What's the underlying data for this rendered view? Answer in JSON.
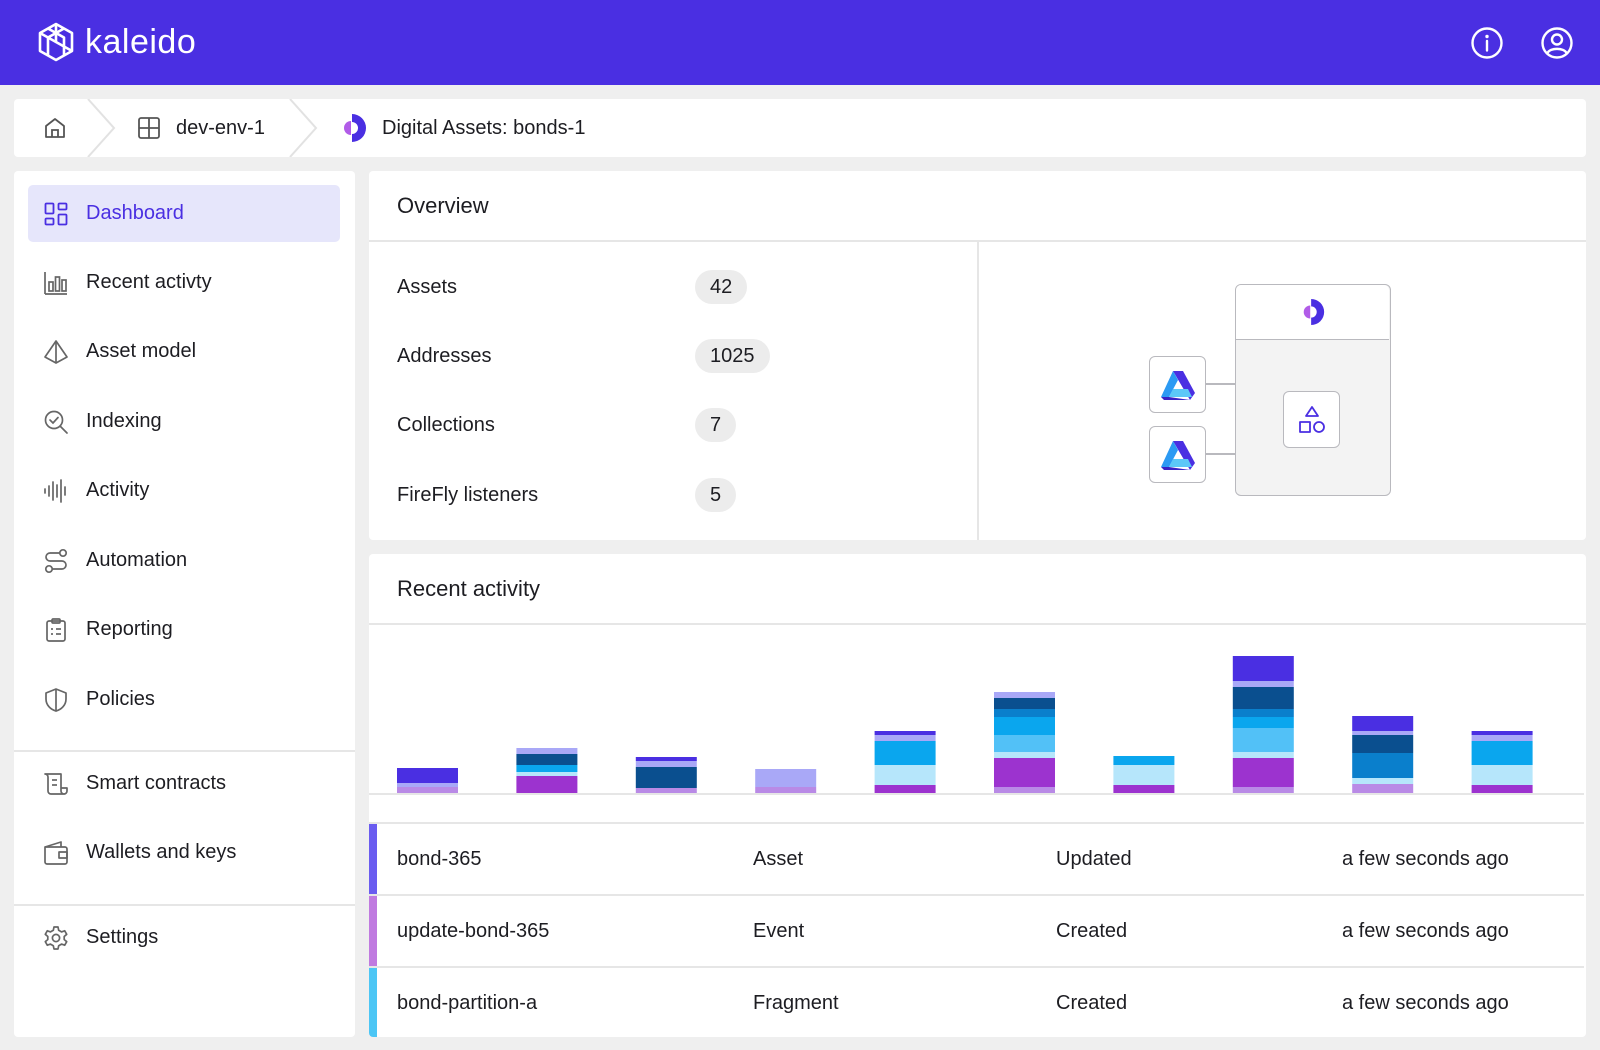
{
  "brand": {
    "name": "kaleido",
    "color": "#4a2fe2"
  },
  "topbar": {
    "info_icon": "info-icon",
    "account_icon": "user-circle-icon"
  },
  "breadcrumb": {
    "home_icon": "home-icon",
    "env_icon": "grid-icon",
    "env_label": "dev-env-1",
    "service_icon": "digital-assets-icon",
    "service_label": "Digital Assets: bonds-1"
  },
  "sidebar": {
    "items": [
      {
        "label": "Dashboard",
        "icon": "dashboard-icon",
        "active": true
      },
      {
        "label": "Recent activty",
        "icon": "bar-chart-icon"
      },
      {
        "label": "Asset model",
        "icon": "prism-icon"
      },
      {
        "label": "Indexing",
        "icon": "search-check-icon"
      },
      {
        "label": "Activity",
        "icon": "waveform-icon"
      },
      {
        "label": "Automation",
        "icon": "flow-icon"
      },
      {
        "label": "Reporting",
        "icon": "clipboard-icon"
      },
      {
        "label": "Policies",
        "icon": "shield-icon"
      }
    ],
    "items2": [
      {
        "label": "Smart contracts",
        "icon": "scroll-icon"
      },
      {
        "label": "Wallets and keys",
        "icon": "wallet-icon"
      }
    ],
    "items3": [
      {
        "label": "Settings",
        "icon": "gear-icon"
      }
    ]
  },
  "overview": {
    "title": "Overview",
    "stats": [
      {
        "label": "Assets",
        "value": "42"
      },
      {
        "label": "Addresses",
        "value": "1025"
      },
      {
        "label": "Collections",
        "value": "7"
      },
      {
        "label": "FireFly listeners",
        "value": "5"
      }
    ]
  },
  "recent": {
    "title": "Recent activity",
    "rows": [
      {
        "name": "bond-365",
        "type": "Asset",
        "action": "Updated",
        "time": "a few seconds ago",
        "color": "#6a5cf0"
      },
      {
        "name": "update-bond-365",
        "type": "Event",
        "action": "Created",
        "time": "a few seconds ago",
        "color": "#c07ae0"
      },
      {
        "name": "bond-partition-a",
        "type": "Fragment",
        "action": "Created",
        "time": "a few seconds ago",
        "color": "#4cc6f5"
      }
    ]
  },
  "chart_data": {
    "type": "bar",
    "stacked": true,
    "palette": [
      "#b98ae6",
      "#9c33cf",
      "#b6e6fb",
      "#52c1f7",
      "#0aa6ee",
      "#0a7fcc",
      "#0a4f8f",
      "#a9a8f7",
      "#4a2fe2"
    ],
    "bars": [
      [
        [
          0,
          6
        ],
        [
          7,
          4
        ],
        [
          8,
          15
        ]
      ],
      [
        [
          1,
          17
        ],
        [
          2,
          4
        ],
        [
          4,
          7
        ],
        [
          6,
          11
        ],
        [
          7,
          6
        ]
      ],
      [
        [
          0,
          5
        ],
        [
          6,
          21
        ],
        [
          7,
          6
        ],
        [
          8,
          4
        ]
      ],
      [
        [
          0,
          6
        ],
        [
          7,
          18
        ]
      ],
      [
        [
          1,
          8
        ],
        [
          2,
          20
        ],
        [
          4,
          24
        ],
        [
          7,
          6
        ],
        [
          8,
          4
        ]
      ],
      [
        [
          0,
          6
        ],
        [
          1,
          29
        ],
        [
          2,
          6
        ],
        [
          3,
          17
        ],
        [
          4,
          18
        ],
        [
          5,
          8
        ],
        [
          6,
          11
        ],
        [
          7,
          6
        ]
      ],
      [
        [
          1,
          8
        ],
        [
          2,
          20
        ],
        [
          4,
          9
        ]
      ],
      [
        [
          0,
          6
        ],
        [
          1,
          29
        ],
        [
          2,
          6
        ],
        [
          3,
          24
        ],
        [
          4,
          11
        ],
        [
          5,
          8
        ],
        [
          6,
          22
        ],
        [
          7,
          6
        ],
        [
          8,
          25
        ]
      ],
      [
        [
          0,
          9
        ],
        [
          2,
          6
        ],
        [
          5,
          25
        ],
        [
          6,
          18
        ],
        [
          7,
          4
        ],
        [
          8,
          15
        ]
      ],
      [
        [
          1,
          8
        ],
        [
          2,
          20
        ],
        [
          4,
          24
        ],
        [
          7,
          6
        ],
        [
          8,
          4
        ]
      ]
    ]
  }
}
